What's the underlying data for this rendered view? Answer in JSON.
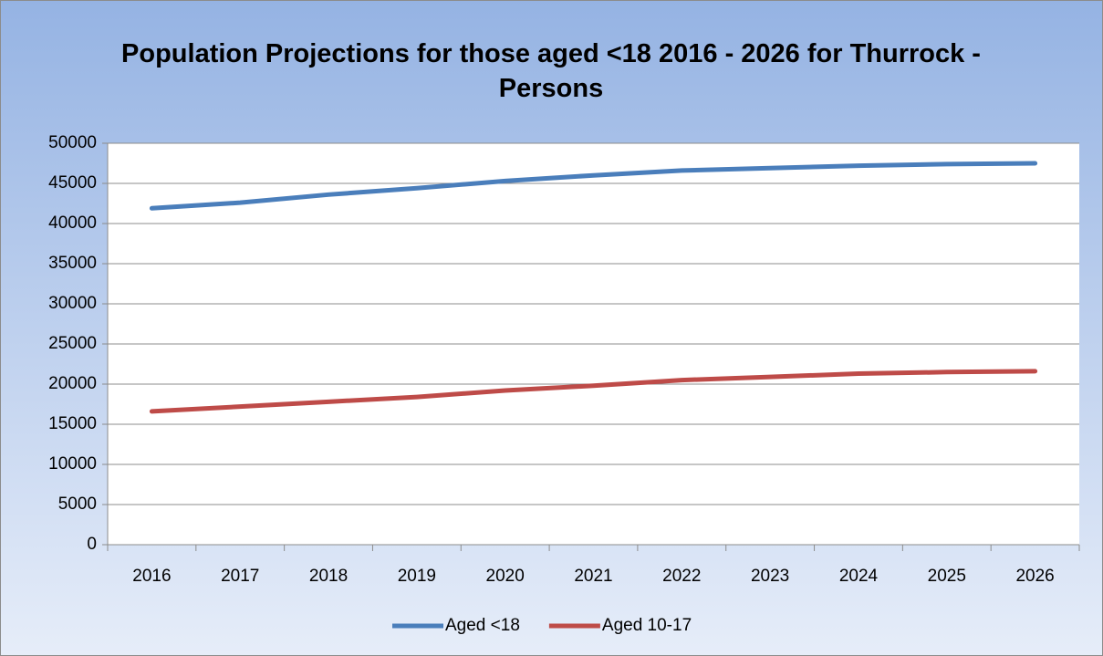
{
  "chart_data": {
    "type": "line",
    "title": "Population Projections for those aged <18 2016 - 2026 for Thurrock - Persons",
    "categories": [
      "2016",
      "2017",
      "2018",
      "2019",
      "2020",
      "2021",
      "2022",
      "2023",
      "2024",
      "2025",
      "2026"
    ],
    "series": [
      {
        "name": "Aged <18",
        "color": "#4a7ebb",
        "values": [
          41900,
          42600,
          43600,
          44400,
          45300,
          46000,
          46600,
          46900,
          47200,
          47400,
          47500
        ]
      },
      {
        "name": "Aged 10-17",
        "color": "#be4b48",
        "values": [
          16600,
          17200,
          17800,
          18400,
          19200,
          19800,
          20500,
          20900,
          21300,
          21500,
          21600
        ]
      }
    ],
    "ylim": [
      0,
      50000
    ],
    "yticks": [
      0,
      5000,
      10000,
      15000,
      20000,
      25000,
      30000,
      35000,
      40000,
      45000,
      50000
    ],
    "grid": true,
    "legend": "bottom"
  }
}
